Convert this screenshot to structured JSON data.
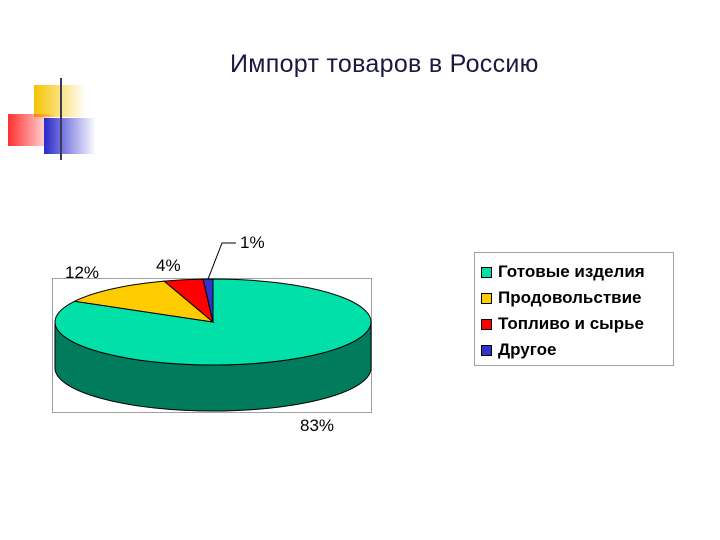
{
  "title": "Импорт товаров в Россию",
  "colors": {
    "title_text": "#1a1a40",
    "deco_yellow": "#f5c400",
    "deco_red": "#ff3030",
    "deco_blue": "#2a2acc",
    "rule": "#3a3a5a"
  },
  "chart_data": {
    "type": "pie",
    "style": "3d",
    "categories": [
      "Готовые изделия",
      "Продовольствие",
      "Топливо и сырье",
      "Другое"
    ],
    "values": [
      83,
      12,
      4,
      1
    ],
    "data_labels": [
      "83%",
      "12%",
      "4%",
      "1%"
    ],
    "colors": [
      "#00e0a8",
      "#ffcc00",
      "#ff0000",
      "#3333cc"
    ],
    "legend_position": "right"
  }
}
